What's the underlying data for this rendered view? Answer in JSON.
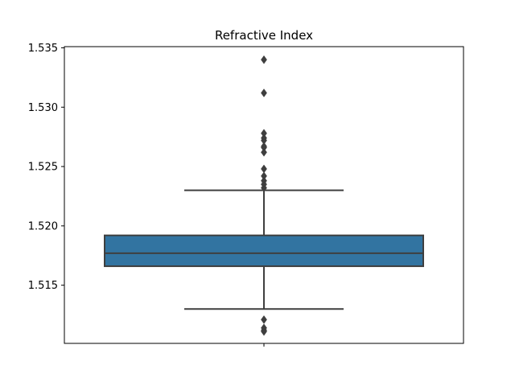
{
  "chart_data": {
    "type": "box",
    "title": "Refractive Index",
    "xlabel": "",
    "ylabel": "",
    "ylim": [
      1.5101,
      1.5351
    ],
    "y_ticks": [
      "1.515",
      "1.520",
      "1.525",
      "1.530",
      "1.535"
    ],
    "series": [
      {
        "whisker_low": 1.513,
        "q1": 1.5166,
        "median": 1.5177,
        "q3": 1.5192,
        "whisker_high": 1.523,
        "outliers": [
          1.534,
          1.5312,
          1.5278,
          1.5274,
          1.5272,
          1.5267,
          1.5266,
          1.5262,
          1.5248,
          1.5242,
          1.5238,
          1.5235,
          1.5232,
          1.5121,
          1.5114,
          1.5112,
          1.5111
        ]
      }
    ],
    "colors": {
      "box": "#3274a1",
      "line": "#3f3f3f"
    },
    "grid": false
  }
}
